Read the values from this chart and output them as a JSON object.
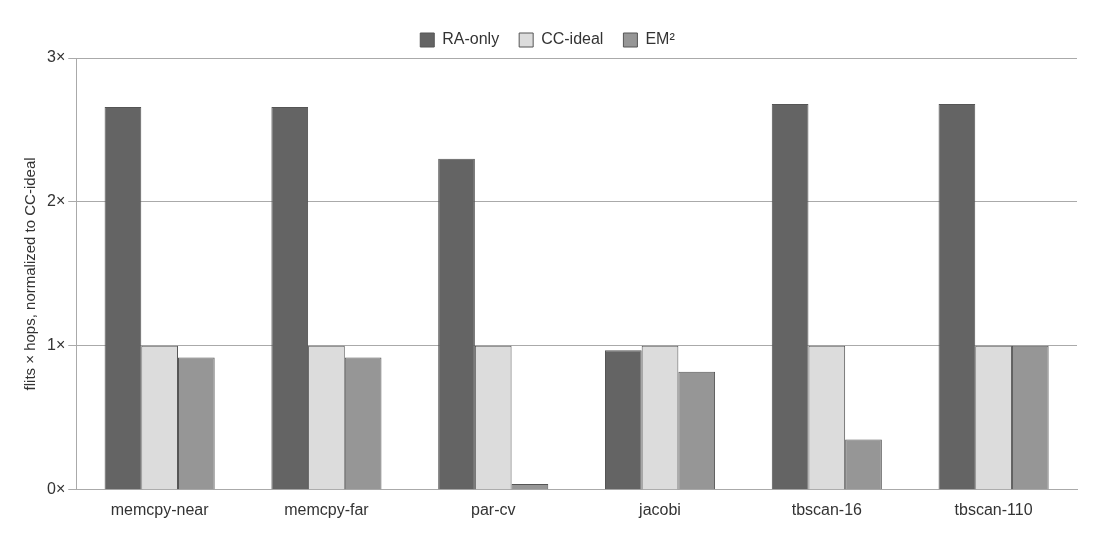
{
  "chart_data": {
    "type": "bar",
    "ylabel": "flits × hops, normalized to CC-ideal",
    "categories": [
      "memcpy-near",
      "memcpy-far",
      "par-cv",
      "jacobi",
      "tbscan-16",
      "tbscan-110"
    ],
    "series": [
      {
        "name": "RA-only",
        "color": "#646464",
        "values": [
          2.66,
          2.66,
          2.3,
          0.97,
          2.68,
          2.68
        ]
      },
      {
        "name": "CC-ideal",
        "color": "#dcdcdc",
        "values": [
          1.0,
          1.0,
          1.0,
          1.0,
          1.0,
          1.0
        ]
      },
      {
        "name": "EM²",
        "color": "#969696",
        "values": [
          0.92,
          0.92,
          0.04,
          0.82,
          0.35,
          1.0
        ]
      }
    ],
    "ylim": [
      0,
      3
    ],
    "yticks": [
      {
        "value": 0,
        "label": "0×"
      },
      {
        "value": 1,
        "label": "1×"
      },
      {
        "value": 2,
        "label": "2×"
      },
      {
        "value": 3,
        "label": "3×"
      }
    ],
    "grid": "y",
    "legend": "top"
  }
}
